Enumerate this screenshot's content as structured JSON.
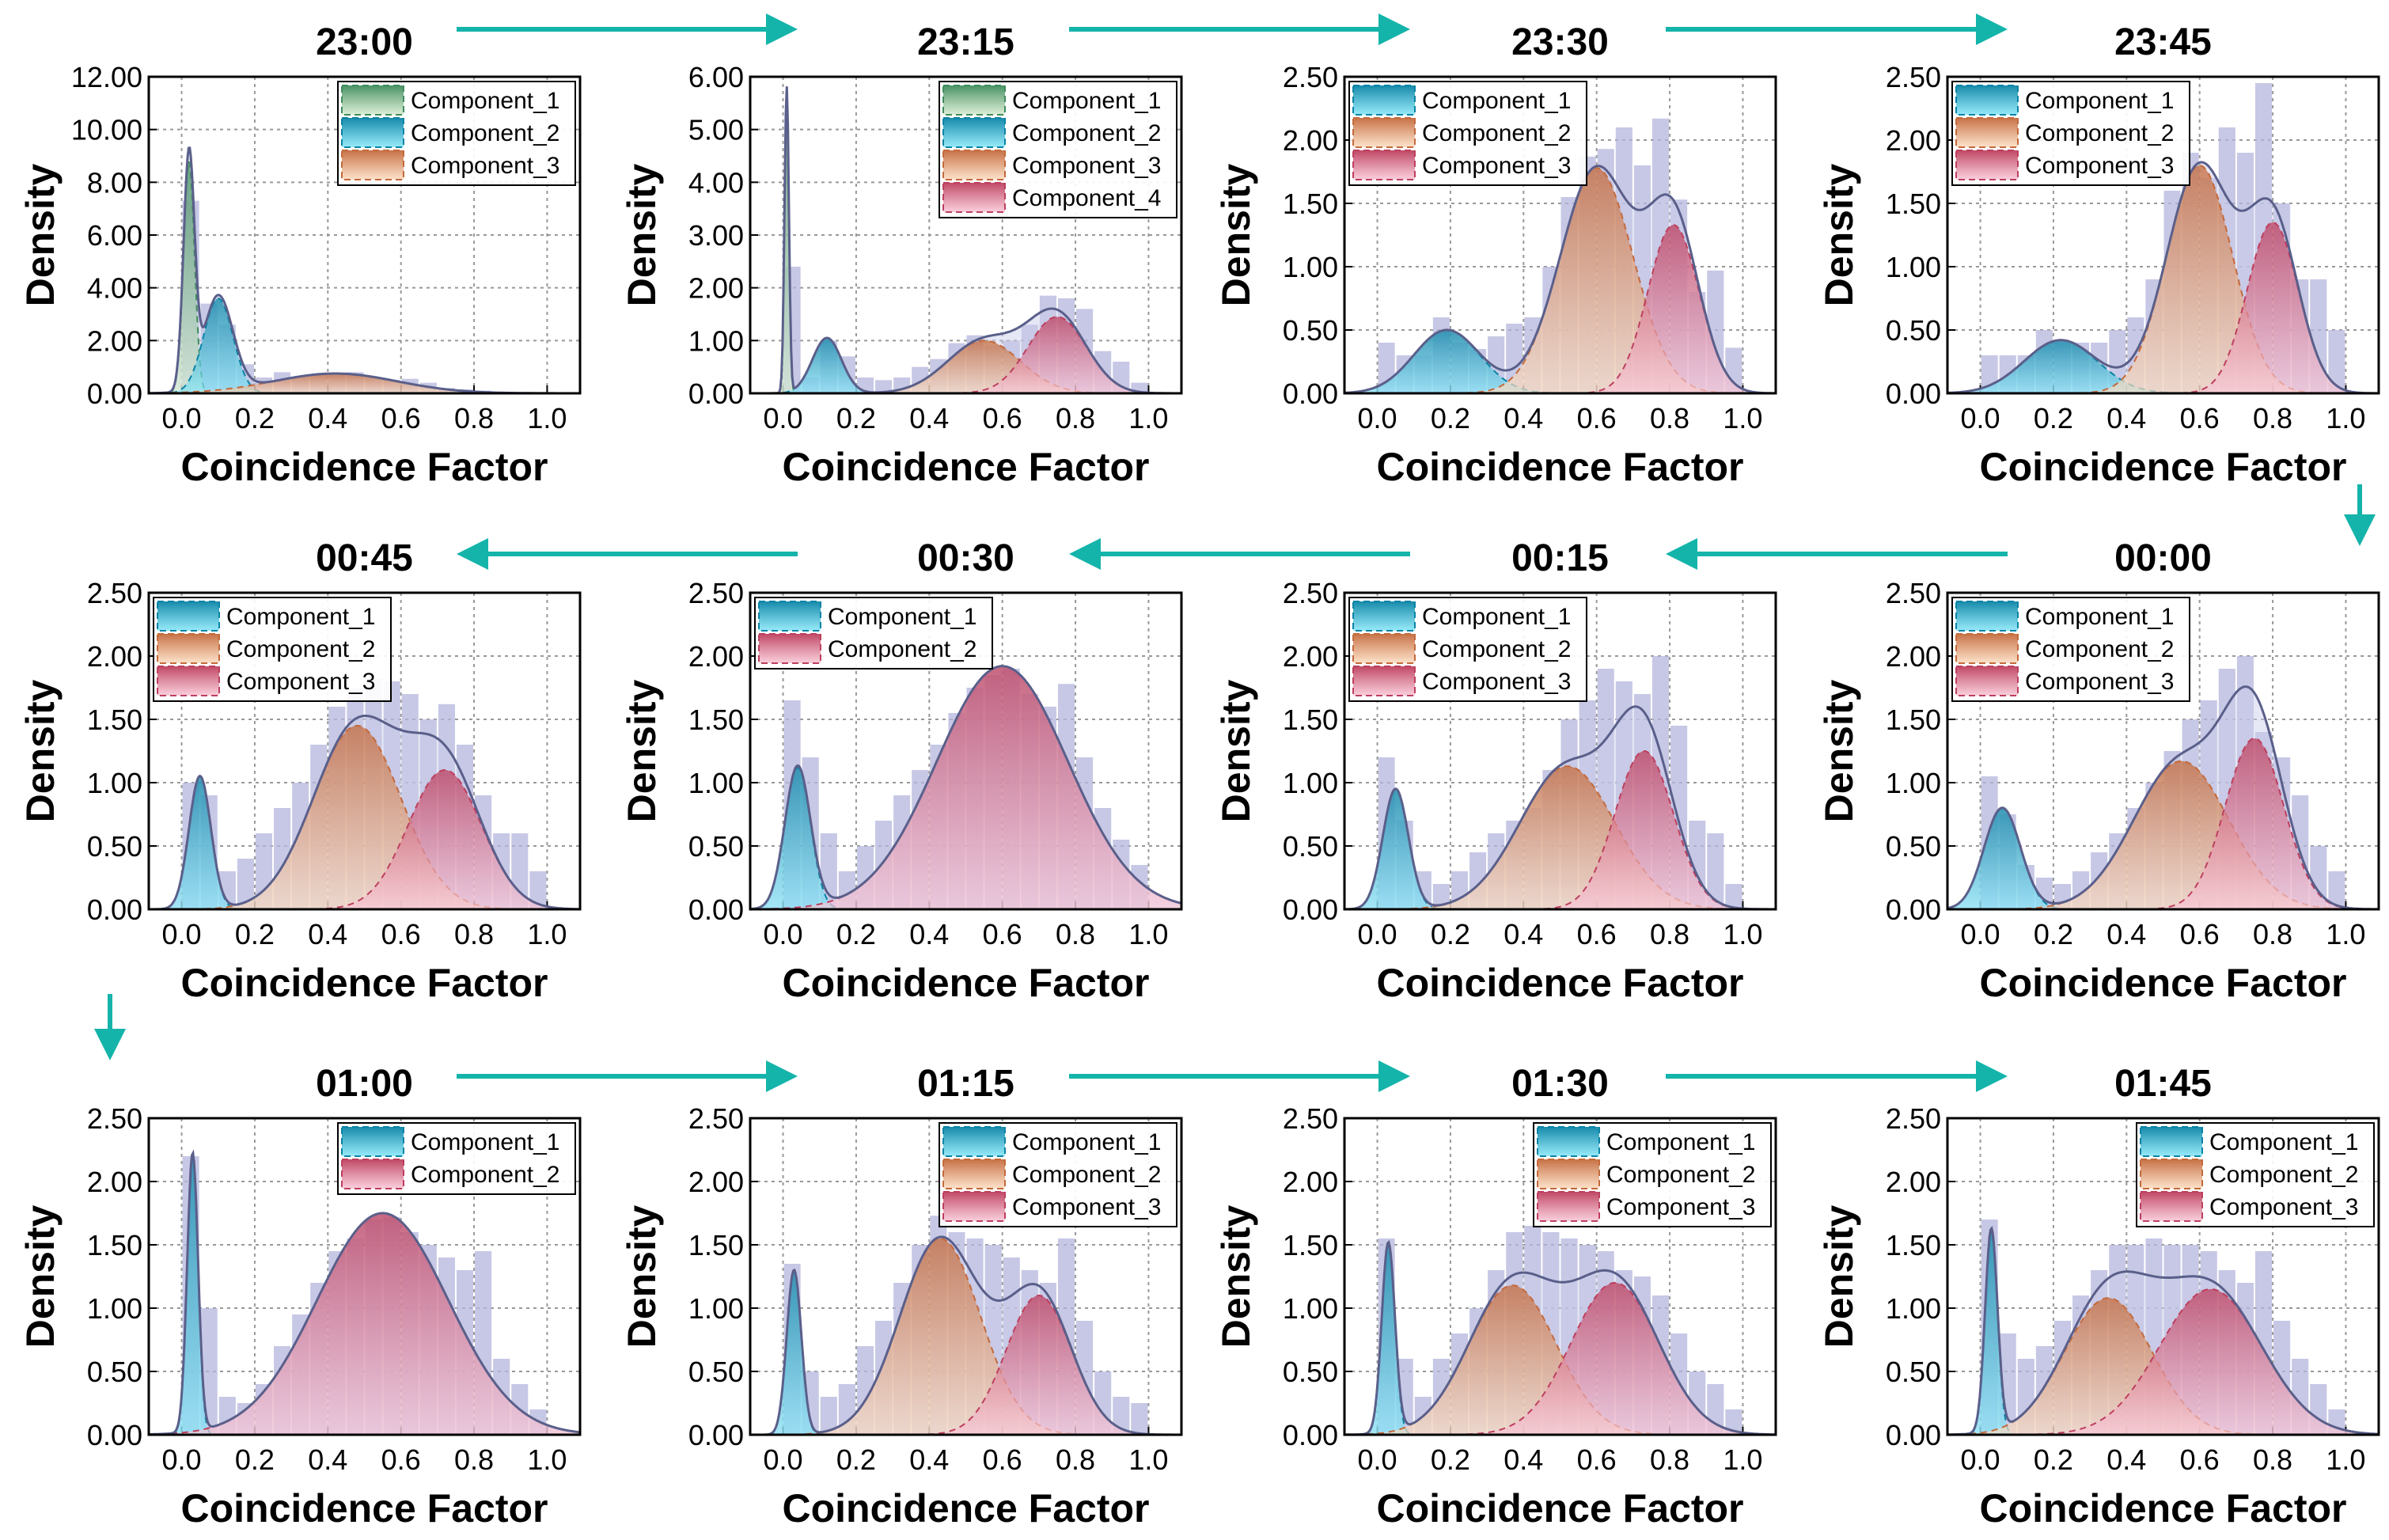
{
  "colors": {
    "arrow": "#14b4aa",
    "histogram": "#b4b6dc",
    "total_fill": "#c9cbe9",
    "total_line": "#5a5f8a",
    "green": [
      "#3f8c5c",
      "#d6ecd0"
    ],
    "blue": [
      "#0a84a6",
      "#84e6f8"
    ],
    "orange": [
      "#c46a3c",
      "#fcdcc0"
    ],
    "pink": [
      "#bd3f5e",
      "#f9c6d6"
    ]
  },
  "chart_data": [
    {
      "type": "area",
      "title": "23:00",
      "xlabel": "Coincidence Factor",
      "ylabel": "Density",
      "xlim": [
        -0.09,
        1.09
      ],
      "ylim": [
        0,
        12
      ],
      "xticks": [
        "0.0",
        "0.2",
        "0.4",
        "0.6",
        "0.8",
        "1.0"
      ],
      "yticks": [
        "0.00",
        "2.00",
        "4.00",
        "6.00",
        "8.00",
        "10.00",
        "12.00"
      ],
      "legend": "top-right",
      "grid": true,
      "bin_width": 0.05,
      "histogram": [
        7.3,
        3.4,
        2.6,
        1.1,
        0.6,
        0.8,
        0.6,
        0.7,
        0.7,
        0.8,
        0.6,
        0.5,
        0.55,
        0.4,
        0.2,
        0.15,
        0.1,
        0.05,
        0.05,
        0.02
      ],
      "components": [
        {
          "name": "Component_1",
          "color": "green",
          "mean": 0.02,
          "sd": 0.015,
          "peak": 8.8
        },
        {
          "name": "Component_2",
          "color": "blue",
          "mean": 0.1,
          "sd": 0.04,
          "peak": 3.6
        },
        {
          "name": "Component_3",
          "color": "orange",
          "mean": 0.42,
          "sd": 0.17,
          "peak": 0.75
        }
      ]
    },
    {
      "type": "area",
      "title": "23:15",
      "xlabel": "Coincidence Factor",
      "ylabel": "Density",
      "xlim": [
        -0.09,
        1.09
      ],
      "ylim": [
        0,
        6
      ],
      "xticks": [
        "0.0",
        "0.2",
        "0.4",
        "0.6",
        "0.8",
        "1.0"
      ],
      "yticks": [
        "0.00",
        "1.00",
        "2.00",
        "3.00",
        "4.00",
        "5.00",
        "6.00"
      ],
      "legend": "top-right",
      "grid": true,
      "bin_width": 0.05,
      "histogram": [
        2.4,
        0.3,
        1.0,
        0.7,
        0.3,
        0.25,
        0.3,
        0.5,
        0.65,
        0.95,
        1.1,
        0.9,
        1.0,
        1.3,
        1.85,
        1.8,
        1.6,
        0.8,
        0.6,
        0.2
      ],
      "components": [
        {
          "name": "Component_1",
          "color": "green",
          "mean": 0.01,
          "sd": 0.006,
          "peak": 5.8
        },
        {
          "name": "Component_2",
          "color": "blue",
          "mean": 0.12,
          "sd": 0.04,
          "peak": 1.05
        },
        {
          "name": "Component_3",
          "color": "orange",
          "mean": 0.55,
          "sd": 0.1,
          "peak": 1.0
        },
        {
          "name": "Component_4",
          "color": "pink",
          "mean": 0.75,
          "sd": 0.08,
          "peak": 1.45
        }
      ]
    },
    {
      "type": "area",
      "title": "23:30",
      "xlabel": "Coincidence Factor",
      "ylabel": "Density",
      "xlim": [
        -0.09,
        1.09
      ],
      "ylim": [
        0,
        2.5
      ],
      "xticks": [
        "0.0",
        "0.2",
        "0.4",
        "0.6",
        "0.8",
        "1.0"
      ],
      "yticks": [
        "0.00",
        "0.50",
        "1.00",
        "1.50",
        "2.00",
        "2.50"
      ],
      "legend": "top-left",
      "grid": true,
      "bin_width": 0.05,
      "histogram": [
        0.4,
        0.3,
        0.3,
        0.6,
        0.4,
        0.35,
        0.45,
        0.55,
        0.6,
        1.0,
        1.55,
        1.87,
        1.93,
        2.1,
        1.8,
        2.17,
        1.53,
        0.8,
        0.97,
        0.36
      ],
      "components": [
        {
          "name": "Component_1",
          "color": "blue",
          "mean": 0.19,
          "sd": 0.09,
          "peak": 0.5
        },
        {
          "name": "Component_2",
          "color": "orange",
          "mean": 0.6,
          "sd": 0.1,
          "peak": 1.78
        },
        {
          "name": "Component_3",
          "color": "pink",
          "mean": 0.81,
          "sd": 0.07,
          "peak": 1.33
        }
      ]
    },
    {
      "type": "area",
      "title": "23:45",
      "xlabel": "Coincidence Factor",
      "ylabel": "Density",
      "xlim": [
        -0.09,
        1.09
      ],
      "ylim": [
        0,
        2.5
      ],
      "xticks": [
        "0.0",
        "0.2",
        "0.4",
        "0.6",
        "0.8",
        "1.0"
      ],
      "yticks": [
        "0.00",
        "0.50",
        "1.00",
        "1.50",
        "2.00",
        "2.50"
      ],
      "legend": "top-left",
      "grid": true,
      "bin_width": 0.05,
      "histogram": [
        0.3,
        0.3,
        0.3,
        0.5,
        0.4,
        0.4,
        0.4,
        0.5,
        0.6,
        0.9,
        1.6,
        1.9,
        1.7,
        2.1,
        1.9,
        2.45,
        1.5,
        0.9,
        0.9,
        0.5
      ],
      "components": [
        {
          "name": "Component_1",
          "color": "blue",
          "mean": 0.22,
          "sd": 0.1,
          "peak": 0.42
        },
        {
          "name": "Component_2",
          "color": "orange",
          "mean": 0.6,
          "sd": 0.09,
          "peak": 1.8
        },
        {
          "name": "Component_3",
          "color": "pink",
          "mean": 0.8,
          "sd": 0.07,
          "peak": 1.35
        }
      ]
    },
    {
      "type": "area",
      "title": "00:00",
      "xlabel": "Coincidence Factor",
      "ylabel": "Density",
      "xlim": [
        -0.09,
        1.09
      ],
      "ylim": [
        0,
        2.5
      ],
      "xticks": [
        "0.0",
        "0.2",
        "0.4",
        "0.6",
        "0.8",
        "1.0"
      ],
      "yticks": [
        "0.00",
        "0.50",
        "1.00",
        "1.50",
        "2.00",
        "2.50"
      ],
      "legend": "top-left",
      "grid": true,
      "bin_width": 0.05,
      "histogram": [
        1.05,
        0.75,
        0.35,
        0.25,
        0.2,
        0.3,
        0.45,
        0.6,
        0.8,
        1.0,
        1.25,
        1.5,
        1.65,
        1.9,
        2.0,
        1.4,
        1.2,
        0.9,
        0.5,
        0.3
      ],
      "components": [
        {
          "name": "Component_1",
          "color": "blue",
          "mean": 0.06,
          "sd": 0.05,
          "peak": 0.8
        },
        {
          "name": "Component_2",
          "color": "orange",
          "mean": 0.55,
          "sd": 0.13,
          "peak": 1.17
        },
        {
          "name": "Component_3",
          "color": "pink",
          "mean": 0.75,
          "sd": 0.08,
          "peak": 1.35
        }
      ]
    },
    {
      "type": "area",
      "title": "00:15",
      "xlabel": "Coincidence Factor",
      "ylabel": "Density",
      "xlim": [
        -0.09,
        1.09
      ],
      "ylim": [
        0,
        2.5
      ],
      "xticks": [
        "0.0",
        "0.2",
        "0.4",
        "0.6",
        "0.8",
        "1.0"
      ],
      "yticks": [
        "0.00",
        "0.50",
        "1.00",
        "1.50",
        "2.00",
        "2.50"
      ],
      "legend": "top-left",
      "grid": true,
      "bin_width": 0.05,
      "histogram": [
        1.2,
        0.7,
        0.3,
        0.2,
        0.3,
        0.45,
        0.6,
        0.7,
        0.8,
        1.1,
        1.5,
        1.65,
        1.9,
        1.8,
        1.7,
        2.0,
        1.45,
        0.7,
        0.6,
        0.2
      ],
      "components": [
        {
          "name": "Component_1",
          "color": "blue",
          "mean": 0.05,
          "sd": 0.035,
          "peak": 0.95
        },
        {
          "name": "Component_2",
          "color": "orange",
          "mean": 0.52,
          "sd": 0.13,
          "peak": 1.13
        },
        {
          "name": "Component_3",
          "color": "pink",
          "mean": 0.73,
          "sd": 0.08,
          "peak": 1.25
        }
      ]
    },
    {
      "type": "area",
      "title": "00:30",
      "xlabel": "Coincidence Factor",
      "ylabel": "Density",
      "xlim": [
        -0.09,
        1.09
      ],
      "ylim": [
        0,
        2.5
      ],
      "xticks": [
        "0.0",
        "0.2",
        "0.4",
        "0.6",
        "0.8",
        "1.0"
      ],
      "yticks": [
        "0.00",
        "0.50",
        "1.00",
        "1.50",
        "2.00",
        "2.50"
      ],
      "legend": "top-left",
      "grid": true,
      "bin_width": 0.05,
      "histogram": [
        1.65,
        1.2,
        0.6,
        0.3,
        0.5,
        0.7,
        0.9,
        1.1,
        1.3,
        1.55,
        1.75,
        1.85,
        1.9,
        1.7,
        1.6,
        1.78,
        1.2,
        0.8,
        0.55,
        0.35
      ],
      "components": [
        {
          "name": "Component_1",
          "color": "blue",
          "mean": 0.04,
          "sd": 0.035,
          "peak": 1.12
        },
        {
          "name": "Component_2",
          "color": "pink",
          "mean": 0.6,
          "sd": 0.18,
          "peak": 1.92
        }
      ]
    },
    {
      "type": "area",
      "title": "00:45",
      "xlabel": "Coincidence Factor",
      "ylabel": "Density",
      "xlim": [
        -0.09,
        1.09
      ],
      "ylim": [
        0,
        2.5
      ],
      "xticks": [
        "0.0",
        "0.2",
        "0.4",
        "0.6",
        "0.8",
        "1.0"
      ],
      "yticks": [
        "0.00",
        "0.50",
        "1.00",
        "1.50",
        "2.00",
        "2.50"
      ],
      "legend": "top-left",
      "grid": true,
      "bin_width": 0.05,
      "histogram": [
        1.0,
        0.9,
        0.3,
        0.4,
        0.6,
        0.8,
        1.0,
        1.3,
        1.6,
        1.75,
        1.82,
        1.8,
        1.7,
        1.5,
        1.62,
        1.3,
        0.9,
        0.6,
        0.6,
        0.3
      ],
      "components": [
        {
          "name": "Component_1",
          "color": "blue",
          "mean": 0.05,
          "sd": 0.03,
          "peak": 1.05
        },
        {
          "name": "Component_2",
          "color": "orange",
          "mean": 0.48,
          "sd": 0.12,
          "peak": 1.45
        },
        {
          "name": "Component_3",
          "color": "pink",
          "mean": 0.72,
          "sd": 0.1,
          "peak": 1.1
        }
      ]
    },
    {
      "type": "area",
      "title": "01:00",
      "xlabel": "Coincidence Factor",
      "ylabel": "Density",
      "xlim": [
        -0.09,
        1.09
      ],
      "ylim": [
        0,
        2.5
      ],
      "xticks": [
        "0.0",
        "0.2",
        "0.4",
        "0.6",
        "0.8",
        "1.0"
      ],
      "yticks": [
        "0.00",
        "0.50",
        "1.00",
        "1.50",
        "2.00",
        "2.50"
      ],
      "legend": "top-right",
      "grid": true,
      "bin_width": 0.05,
      "histogram": [
        2.2,
        1.0,
        0.3,
        0.25,
        0.4,
        0.7,
        0.95,
        1.2,
        1.45,
        1.55,
        1.7,
        1.72,
        1.6,
        1.5,
        1.4,
        1.3,
        1.45,
        0.6,
        0.4,
        0.2
      ],
      "components": [
        {
          "name": "Component_1",
          "color": "blue",
          "mean": 0.03,
          "sd": 0.015,
          "peak": 2.2
        },
        {
          "name": "Component_2",
          "color": "pink",
          "mean": 0.55,
          "sd": 0.18,
          "peak": 1.75
        }
      ]
    },
    {
      "type": "area",
      "title": "01:15",
      "xlabel": "Coincidence Factor",
      "ylabel": "Density",
      "xlim": [
        -0.09,
        1.09
      ],
      "ylim": [
        0,
        2.5
      ],
      "xticks": [
        "0.0",
        "0.2",
        "0.4",
        "0.6",
        "0.8",
        "1.0"
      ],
      "yticks": [
        "0.00",
        "0.50",
        "1.00",
        "1.50",
        "2.00",
        "2.50"
      ],
      "legend": "top-right",
      "grid": true,
      "bin_width": 0.05,
      "histogram": [
        1.35,
        0.5,
        0.3,
        0.4,
        0.7,
        0.9,
        1.2,
        1.5,
        1.73,
        1.6,
        1.55,
        1.5,
        1.4,
        1.3,
        1.2,
        1.55,
        0.9,
        0.5,
        0.3,
        0.25
      ],
      "components": [
        {
          "name": "Component_1",
          "color": "blue",
          "mean": 0.03,
          "sd": 0.02,
          "peak": 1.3
        },
        {
          "name": "Component_2",
          "color": "orange",
          "mean": 0.43,
          "sd": 0.11,
          "peak": 1.55
        },
        {
          "name": "Component_3",
          "color": "pink",
          "mean": 0.7,
          "sd": 0.09,
          "peak": 1.1
        }
      ]
    },
    {
      "type": "area",
      "title": "01:30",
      "xlabel": "Coincidence Factor",
      "ylabel": "Density",
      "xlim": [
        -0.09,
        1.09
      ],
      "ylim": [
        0,
        2.5
      ],
      "xticks": [
        "0.0",
        "0.2",
        "0.4",
        "0.6",
        "0.8",
        "1.0"
      ],
      "yticks": [
        "0.00",
        "0.50",
        "1.00",
        "1.50",
        "2.00",
        "2.50"
      ],
      "legend": "top-right",
      "grid": true,
      "bin_width": 0.05,
      "histogram": [
        1.55,
        0.6,
        0.3,
        0.6,
        0.8,
        1.0,
        1.3,
        1.6,
        1.65,
        1.6,
        1.55,
        1.5,
        1.45,
        1.3,
        1.25,
        1.1,
        0.8,
        0.5,
        0.4,
        0.2
      ],
      "components": [
        {
          "name": "Component_1",
          "color": "blue",
          "mean": 0.03,
          "sd": 0.018,
          "peak": 1.5
        },
        {
          "name": "Component_2",
          "color": "orange",
          "mean": 0.37,
          "sd": 0.12,
          "peak": 1.18
        },
        {
          "name": "Component_3",
          "color": "pink",
          "mean": 0.65,
          "sd": 0.12,
          "peak": 1.2
        }
      ]
    },
    {
      "type": "area",
      "title": "01:45",
      "xlabel": "Coincidence Factor",
      "ylabel": "Density",
      "xlim": [
        -0.09,
        1.09
      ],
      "ylim": [
        0,
        2.5
      ],
      "xticks": [
        "0.0",
        "0.2",
        "0.4",
        "0.6",
        "0.8",
        "1.0"
      ],
      "yticks": [
        "0.00",
        "0.50",
        "1.00",
        "1.50",
        "2.00",
        "2.50"
      ],
      "legend": "top-right",
      "grid": true,
      "bin_width": 0.05,
      "histogram": [
        1.7,
        0.8,
        0.6,
        0.7,
        0.9,
        1.1,
        1.3,
        1.5,
        1.5,
        1.55,
        1.5,
        1.5,
        1.45,
        1.3,
        1.2,
        1.45,
        0.9,
        0.6,
        0.4,
        0.2
      ],
      "components": [
        {
          "name": "Component_1",
          "color": "blue",
          "mean": 0.03,
          "sd": 0.017,
          "peak": 1.6
        },
        {
          "name": "Component_2",
          "color": "orange",
          "mean": 0.35,
          "sd": 0.12,
          "peak": 1.08
        },
        {
          "name": "Component_3",
          "color": "pink",
          "mean": 0.63,
          "sd": 0.14,
          "peak": 1.15
        }
      ]
    }
  ]
}
